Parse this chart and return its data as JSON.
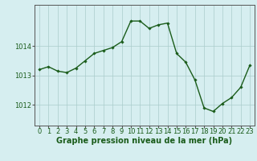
{
  "x": [
    0,
    1,
    2,
    3,
    4,
    5,
    6,
    7,
    8,
    9,
    10,
    11,
    12,
    13,
    14,
    15,
    16,
    17,
    18,
    19,
    20,
    21,
    22,
    23
  ],
  "y": [
    1013.2,
    1013.3,
    1013.15,
    1013.1,
    1013.25,
    1013.5,
    1013.75,
    1013.85,
    1013.95,
    1014.15,
    1014.85,
    1014.85,
    1014.6,
    1014.72,
    1014.78,
    1013.75,
    1013.45,
    1012.85,
    1011.9,
    1011.78,
    1012.05,
    1012.25,
    1012.6,
    1013.35
  ],
  "line_color": "#1a5c1a",
  "marker": "D",
  "marker_size": 1.8,
  "bg_color": "#d6eef0",
  "grid_color": "#aacccc",
  "xlabel": "Graphe pression niveau de la mer (hPa)",
  "xlabel_fontsize": 7,
  "ylabel_ticks": [
    1012,
    1013,
    1014
  ],
  "ylim": [
    1011.3,
    1015.4
  ],
  "xlim": [
    -0.5,
    23.5
  ],
  "xtick_labels": [
    "0",
    "1",
    "2",
    "3",
    "4",
    "5",
    "6",
    "7",
    "8",
    "9",
    "10",
    "11",
    "12",
    "13",
    "14",
    "15",
    "16",
    "17",
    "18",
    "19",
    "20",
    "21",
    "22",
    "23"
  ],
  "tick_fontsize": 6.0,
  "line_width": 1.0,
  "title": ""
}
